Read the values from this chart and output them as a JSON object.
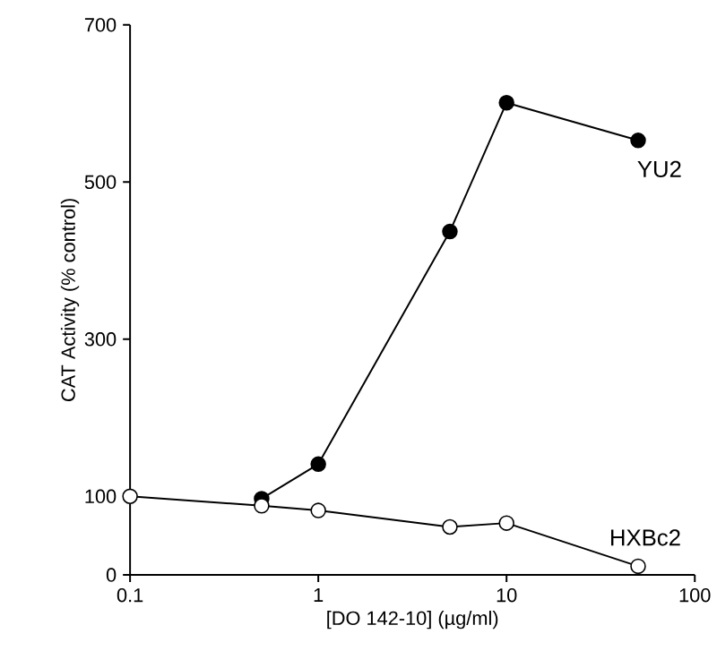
{
  "chart_data": {
    "type": "line",
    "xlabel": "[DO 142-10] (µg/ml)",
    "ylabel": "CAT Activity (% control)",
    "log": "x",
    "xlim": [
      0.1,
      100
    ],
    "xticks": [
      0.1,
      1,
      10,
      100
    ],
    "ylim": [
      0,
      700
    ],
    "yticks": [
      0,
      100,
      300,
      500,
      700
    ],
    "marker": "circle",
    "line_style": "solid",
    "grid": false,
    "series": [
      {
        "name": "YU2",
        "color": "#000000",
        "x": [
          0.5,
          1,
          5,
          10,
          50
        ],
        "values": [
          97,
          141,
          437,
          601,
          553
        ]
      },
      {
        "name": "HXBc2",
        "color": "#000000",
        "x": [
          0.1,
          0.5,
          1,
          5,
          10,
          50
        ],
        "values": [
          100,
          88,
          82,
          61,
          66,
          11
        ]
      }
    ]
  }
}
